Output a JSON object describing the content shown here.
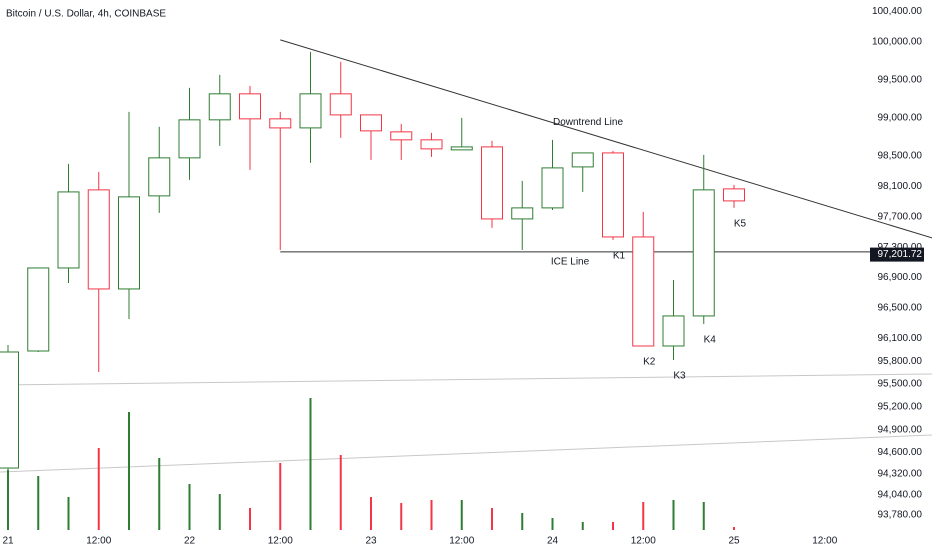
{
  "chart_data": {
    "type": "candlestick",
    "title": "Bitcoin / U.S. Dollar, 4h, COINBASE",
    "categories": [
      "21",
      null,
      null,
      "12:00",
      null,
      null,
      "22",
      null,
      null,
      "12:00",
      null,
      null,
      "23",
      null,
      null,
      "12:00",
      null,
      null,
      "24",
      null,
      null,
      "12:00",
      null,
      null,
      "25",
      null,
      null,
      "12:00"
    ],
    "open": [
      94395,
      95934,
      97026,
      98053,
      96750,
      97974,
      98474,
      98974,
      99316,
      98987,
      98868,
      99316,
      99039,
      98816,
      98711,
      98579,
      98618,
      97671,
      97816,
      98355,
      98539,
      97434,
      96000,
      96395,
      98066,
      null,
      null,
      null
    ],
    "high": [
      96013,
      97026,
      98395,
      98289,
      99079,
      98882,
      99395,
      99566,
      99421,
      99079,
      99868,
      99737,
      99039,
      98921,
      98803,
      99000,
      98697,
      98171,
      98711,
      98539,
      98566,
      97763,
      96868,
      98513,
      98118,
      null,
      null,
      null
    ],
    "low": [
      94342,
      95921,
      96829,
      95658,
      96355,
      97750,
      98184,
      98632,
      98316,
      97263,
      98408,
      98737,
      98447,
      98447,
      98487,
      98579,
      97553,
      97263,
      97789,
      98026,
      97395,
      96000,
      95816,
      96289,
      97816,
      null,
      null,
      null
    ],
    "close": [
      95921,
      97026,
      98026,
      96750,
      97961,
      98474,
      98974,
      99316,
      98987,
      98868,
      99316,
      99039,
      98829,
      98711,
      98592,
      98618,
      97671,
      97816,
      98342,
      98539,
      97434,
      96000,
      96395,
      98053,
      97908,
      null,
      null,
      null
    ],
    "volume": [
      60,
      54,
      33,
      82,
      118,
      72,
      46,
      36,
      22,
      67,
      132,
      75,
      33,
      27,
      30,
      30,
      22,
      17,
      12,
      8,
      8,
      28,
      30,
      28,
      3,
      null,
      null,
      null
    ],
    "candle_labels": [
      null,
      null,
      null,
      null,
      null,
      null,
      null,
      null,
      null,
      null,
      null,
      null,
      null,
      null,
      null,
      null,
      null,
      null,
      null,
      null,
      "K1",
      "K2",
      "K3",
      "K4",
      "K5",
      null,
      null,
      null
    ],
    "up_color": "#2e7d32",
    "down_color": "#f23645",
    "ylim": [
      93580,
      100550
    ],
    "yticks": [
      {
        "value": 100400,
        "label": "100,400.00"
      },
      {
        "value": 100000,
        "label": "100,000.00"
      },
      {
        "value": 99500,
        "label": "99,500.00"
      },
      {
        "value": 99000,
        "label": "99,000.00"
      },
      {
        "value": 98500,
        "label": "98,500.00"
      },
      {
        "value": 98100,
        "label": "98,100.00"
      },
      {
        "value": 97700,
        "label": "97,700.00"
      },
      {
        "value": 97300,
        "label": "97,300.00"
      },
      {
        "value": 96900,
        "label": "96,900.00"
      },
      {
        "value": 96500,
        "label": "96,500.00"
      },
      {
        "value": 96100,
        "label": "96,100.00"
      },
      {
        "value": 95800,
        "label": "95,800.00"
      },
      {
        "value": 95500,
        "label": "95,500.00"
      },
      {
        "value": 95200,
        "label": "95,200.00"
      },
      {
        "value": 94900,
        "label": "94,900.00"
      },
      {
        "value": 94600,
        "label": "94,600.00"
      },
      {
        "value": 94320,
        "label": "94,320.00"
      },
      {
        "value": 94040,
        "label": "94,040.00"
      },
      {
        "value": 93780,
        "label": "93,780.00"
      }
    ],
    "last_price": {
      "value": 97201.72,
      "label": "97,201.72"
    },
    "lines": [
      {
        "label": "Downtrend Line",
        "color": "#333333",
        "x": [
          9,
          30.55
        ],
        "y": [
          100026,
          97421
        ]
      },
      {
        "label": "ICE Line",
        "color": "#333333",
        "x": [
          9,
          28.5
        ],
        "y": [
          97237,
          97237
        ]
      },
      {
        "color": "#c8c8c8",
        "x": [
          -0.26,
          30.55
        ],
        "y": [
          95487,
          95632
        ]
      },
      {
        "color": "#c8c8c8",
        "x": [
          -0.26,
          30.55
        ],
        "y": [
          94342,
          94829
        ]
      }
    ]
  }
}
